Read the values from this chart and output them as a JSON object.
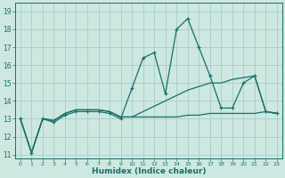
{
  "xlabel": "Humidex (Indice chaleur)",
  "ylabel": "",
  "xlim": [
    -0.5,
    23.5
  ],
  "ylim": [
    10.8,
    19.5
  ],
  "yticks": [
    11,
    12,
    13,
    14,
    15,
    16,
    17,
    18,
    19
  ],
  "xticks": [
    0,
    1,
    2,
    3,
    4,
    5,
    6,
    7,
    8,
    9,
    10,
    11,
    12,
    13,
    14,
    15,
    16,
    17,
    18,
    19,
    20,
    21,
    22,
    23
  ],
  "background_color": "#cce8e0",
  "grid_color": "#aacccc",
  "line_color": "#1a6e6a",
  "line1_x": [
    0,
    1,
    2,
    3,
    4,
    5,
    6,
    7,
    8,
    9,
    10,
    11,
    12,
    13,
    14,
    15,
    16,
    17,
    18,
    19,
    20,
    21,
    22,
    23
  ],
  "line1_y": [
    13.0,
    11.1,
    13.0,
    12.8,
    13.2,
    13.4,
    13.4,
    13.4,
    13.3,
    13.0,
    14.7,
    16.4,
    16.7,
    14.4,
    18.0,
    18.6,
    17.0,
    15.4,
    13.6,
    13.6,
    15.0,
    15.4,
    13.4,
    13.3
  ],
  "line2_x": [
    0,
    1,
    2,
    3,
    4,
    5,
    6,
    7,
    8,
    9,
    10,
    11,
    12,
    13,
    14,
    15,
    16,
    17,
    18,
    19,
    20,
    21,
    22,
    23
  ],
  "line2_y": [
    13.0,
    11.1,
    13.0,
    12.9,
    13.3,
    13.5,
    13.5,
    13.5,
    13.4,
    13.1,
    13.1,
    13.4,
    13.7,
    14.0,
    14.3,
    14.6,
    14.8,
    15.0,
    15.0,
    15.2,
    15.3,
    15.4,
    13.4,
    13.3
  ],
  "line3_x": [
    0,
    1,
    2,
    3,
    4,
    5,
    6,
    7,
    8,
    9,
    10,
    11,
    12,
    13,
    14,
    15,
    16,
    17,
    18,
    19,
    20,
    21,
    22,
    23
  ],
  "line3_y": [
    13.0,
    11.1,
    13.0,
    12.9,
    13.3,
    13.5,
    13.5,
    13.5,
    13.4,
    13.1,
    13.1,
    13.1,
    13.1,
    13.1,
    13.1,
    13.2,
    13.2,
    13.3,
    13.3,
    13.3,
    13.3,
    13.3,
    13.4,
    13.3
  ]
}
